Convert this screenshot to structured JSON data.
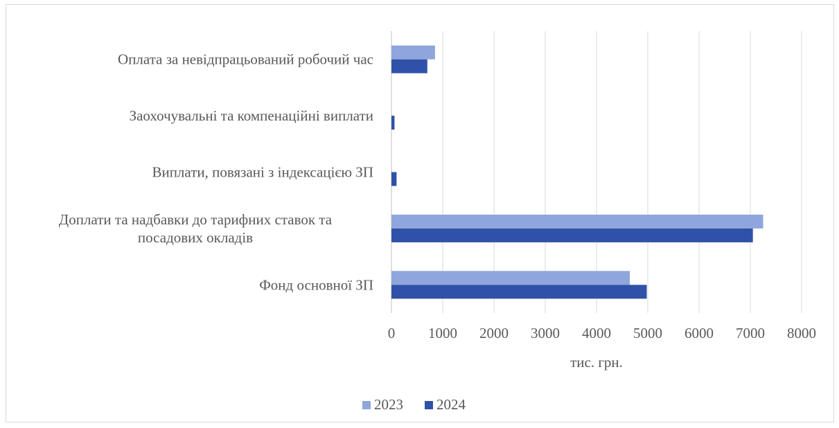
{
  "chart_data": {
    "type": "bar",
    "orientation": "horizontal",
    "categories": [
      "Оплата за невідпрацьований робочий час",
      "Заохочувальні та компенаційні виплати",
      "Виплати, повязані з індексацією ЗП",
      "Доплати та надбавки до тарифних ставок та посадових окладів",
      "Фонд основної ЗП"
    ],
    "category_lines": [
      [
        "Оплата за невідпрацьований робочий час"
      ],
      [
        "Заохочувальні та компенаційні виплати"
      ],
      [
        "Виплати, повязані з індексацією ЗП"
      ],
      [
        "Доплати та надбавки до тарифних ставок та",
        "посадових окладів"
      ],
      [
        "Фонд основної ЗП"
      ]
    ],
    "series": [
      {
        "name": "2023",
        "color": "#8fa6dc",
        "values": [
          850,
          0,
          0,
          7250,
          4650
        ]
      },
      {
        "name": "2024",
        "color": "#2f52a8",
        "values": [
          700,
          60,
          100,
          7050,
          4980
        ]
      }
    ],
    "xlabel": "тис. грн.",
    "ylabel": "",
    "xlim": [
      0,
      8000
    ],
    "xticks": [
      "0",
      "1000",
      "2000",
      "3000",
      "4000",
      "5000",
      "6000",
      "7000",
      "8000"
    ],
    "grid": true,
    "legend_position": "bottom"
  }
}
